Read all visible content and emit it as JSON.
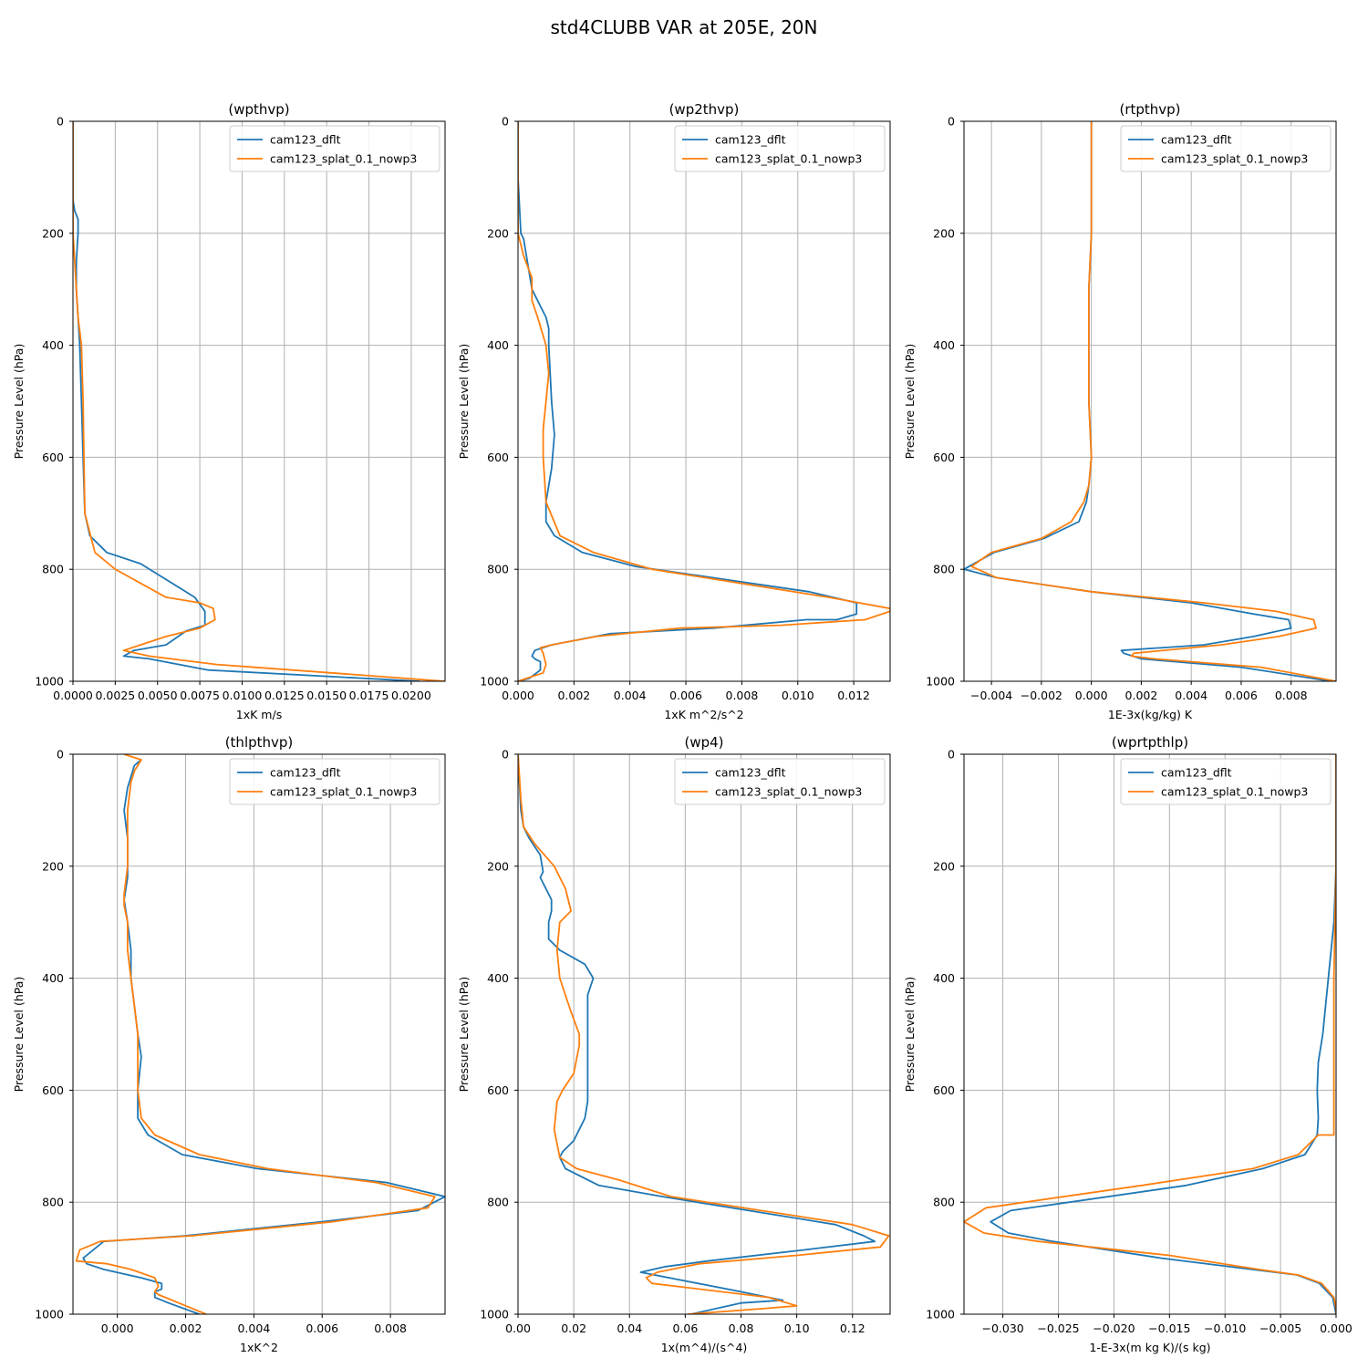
{
  "figure": {
    "suptitle": "std4CLUBB VAR at 205E, 20N"
  },
  "colors": {
    "series1": "#1f77b4",
    "series2": "#ff7f0e",
    "grid": "#b0b0b0"
  },
  "legend_entries": [
    "cam123_dflt",
    "cam123_splat_0.1_nowp3"
  ],
  "chart_data": [
    {
      "type": "line",
      "title": "(wpthvp)",
      "xlabel": "1xK m/s",
      "ylabel": "Pressure Level (hPa)",
      "xlim": [
        0.0,
        0.022
      ],
      "ylim": [
        1000,
        0
      ],
      "xticks": [
        0.0,
        0.0025,
        0.005,
        0.0075,
        0.01,
        0.0125,
        0.015,
        0.0175,
        0.02
      ],
      "xticklabels": [
        "0.0000",
        "0.0025",
        "0.0050",
        "0.0075",
        "0.0100",
        "0.0125",
        "0.0150",
        "0.0175",
        "0.0200"
      ],
      "yticks": [
        0,
        200,
        400,
        600,
        800,
        1000
      ],
      "grid": true,
      "legend": "upper right",
      "series": [
        {
          "name": "cam123_dflt",
          "x": [
            0,
            0,
            0.0001,
            0.0003,
            0.0003,
            0.0002,
            0.0002,
            0.0003,
            0.0004,
            0.0005,
            0.0006,
            0.0007,
            0.001,
            0.002,
            0.004,
            0.0072,
            0.0078,
            0.0078,
            0.0067,
            0.0055,
            0.0036,
            0.003,
            0.0045,
            0.008,
            0.0205
          ],
          "y": [
            0,
            140,
            160,
            175,
            200,
            250,
            300,
            350,
            400,
            500,
            600,
            700,
            740,
            770,
            790,
            850,
            875,
            900,
            910,
            935,
            945,
            955,
            960,
            980,
            1000
          ]
        },
        {
          "name": "cam123_splat_0.1_nowp3",
          "x": [
            0,
            0,
            0,
            0.0001,
            0.0002,
            0.0003,
            0.0005,
            0.0006,
            0.0007,
            0.0013,
            0.0025,
            0.0055,
            0.0075,
            0.0083,
            0.0084,
            0.0075,
            0.0055,
            0.004,
            0.003,
            0.0045,
            0.0085,
            0.022
          ],
          "y": [
            0,
            150,
            200,
            250,
            300,
            350,
            400,
            500,
            700,
            770,
            800,
            850,
            860,
            870,
            890,
            905,
            920,
            935,
            945,
            955,
            970,
            1000
          ]
        }
      ]
    },
    {
      "type": "line",
      "title": "(wp2thvp)",
      "xlabel": "1xK m^2/s^2",
      "ylabel": "Pressure Level (hPa)",
      "xlim": [
        0.0,
        0.0133
      ],
      "ylim": [
        1000,
        0
      ],
      "xticks": [
        0.0,
        0.002,
        0.004,
        0.006,
        0.008,
        0.01,
        0.012
      ],
      "xticklabels": [
        "0.000",
        "0.002",
        "0.004",
        "0.006",
        "0.008",
        "0.010",
        "0.012"
      ],
      "yticks": [
        0,
        200,
        400,
        600,
        800,
        1000
      ],
      "grid": true,
      "legend": "upper right",
      "series": [
        {
          "name": "cam123_dflt",
          "x": [
            0,
            0,
            0.0001,
            0.0002,
            0.0003,
            0.0005,
            0.0008,
            0.001,
            0.0011,
            0.0011,
            0.0012,
            0.0013,
            0.0012,
            0.001,
            0.001,
            0.0013,
            0.0023,
            0.0042,
            0.0104,
            0.0121,
            0.0121,
            0.0114,
            0.0103,
            0.007,
            0.0033,
            0.0012,
            0.0006,
            0.0005,
            0.0006,
            0.0008,
            0.0008,
            0.0004,
            0
          ],
          "y": [
            0,
            100,
            200,
            210,
            240,
            300,
            330,
            350,
            370,
            400,
            500,
            560,
            620,
            680,
            715,
            740,
            770,
            795,
            840,
            860,
            880,
            890,
            890,
            905,
            915,
            935,
            945,
            955,
            960,
            965,
            980,
            995,
            1000
          ]
        },
        {
          "name": "cam123_splat_0.1_nowp3",
          "x": [
            0,
            0,
            0,
            0.0002,
            0.0005,
            0.0005,
            0.0007,
            0.001,
            0.0011,
            0.001,
            0.0009,
            0.0009,
            0.001,
            0.0015,
            0.0027,
            0.0048,
            0.0111,
            0.0133,
            0.0133,
            0.0124,
            0.0094,
            0.0058,
            0.0028,
            0.0012,
            0.0008,
            0.0009,
            0.001,
            0.0009,
            0.0003,
            0
          ],
          "y": [
            0,
            100,
            200,
            240,
            280,
            320,
            350,
            400,
            450,
            500,
            550,
            600,
            680,
            740,
            770,
            800,
            850,
            870,
            875,
            890,
            900,
            905,
            920,
            935,
            940,
            950,
            970,
            985,
            995,
            1000
          ]
        }
      ]
    },
    {
      "type": "line",
      "title": "(rtpthvp)",
      "xlabel": "1E-3x(kg/kg) K",
      "ylabel": "Pressure Level (hPa)",
      "xlim": [
        -0.0051,
        0.0098
      ],
      "ylim": [
        1000,
        0
      ],
      "xticks": [
        -0.004,
        -0.002,
        0.0,
        0.002,
        0.004,
        0.006,
        0.008
      ],
      "xticklabels": [
        "−0.004",
        "−0.002",
        "0.000",
        "0.002",
        "0.004",
        "0.006",
        "0.008"
      ],
      "yticks": [
        0,
        200,
        400,
        600,
        800,
        1000
      ],
      "grid": true,
      "legend": "upper right",
      "series": [
        {
          "name": "cam123_dflt",
          "x": [
            0,
            0,
            0,
            -0.0001,
            -0.0001,
            -0.0001,
            0,
            -0.0001,
            -0.0002,
            -0.0005,
            -0.0019,
            -0.0039,
            -0.0051,
            -0.0038,
            0.0,
            0.004,
            0.0065,
            0.0079,
            0.008,
            0.0065,
            0.0045,
            0.0012,
            0.0013,
            0.002,
            0.006,
            0.0096
          ],
          "y": [
            0,
            100,
            200,
            300,
            400,
            500,
            600,
            650,
            680,
            715,
            745,
            770,
            800,
            815,
            840,
            860,
            880,
            890,
            905,
            920,
            935,
            945,
            950,
            960,
            975,
            1000
          ]
        },
        {
          "name": "cam123_splat_0.1_nowp3",
          "x": [
            0,
            0,
            0,
            -0.0001,
            -0.0001,
            -0.0001,
            0,
            -0.0001,
            -0.0003,
            -0.0008,
            -0.002,
            -0.004,
            -0.0048,
            -0.0038,
            0.0,
            0.0045,
            0.0074,
            0.0089,
            0.009,
            0.0075,
            0.0052,
            0.0017,
            0.0016,
            0.0025,
            0.0068,
            0.0098
          ],
          "y": [
            0,
            100,
            200,
            300,
            400,
            500,
            600,
            650,
            680,
            715,
            745,
            770,
            795,
            815,
            840,
            860,
            875,
            890,
            905,
            920,
            935,
            950,
            955,
            960,
            975,
            1000
          ]
        }
      ]
    },
    {
      "type": "line",
      "title": "(thlpthvp)",
      "xlabel": "1xK^2",
      "ylabel": "Pressure Level (hPa)",
      "xlim": [
        -0.0013,
        0.0096
      ],
      "ylim": [
        1000,
        0
      ],
      "xticks": [
        0.0,
        0.002,
        0.004,
        0.006,
        0.008
      ],
      "xticklabels": [
        "0.000",
        "0.002",
        "0.004",
        "0.006",
        "0.008"
      ],
      "yticks": [
        0,
        200,
        400,
        600,
        800,
        1000
      ],
      "grid": true,
      "legend": "upper right",
      "series": [
        {
          "name": "cam123_dflt",
          "x": [
            0.0007,
            0.0005,
            0.0004,
            0.0003,
            0.0002,
            0.0003,
            0.0003,
            0.0003,
            0.0002,
            0.0003,
            0.0004,
            0.0004,
            0.0005,
            0.0006,
            0.0007,
            0.0006,
            0.0006,
            0.0009,
            0.0019,
            0.0041,
            0.0079,
            0.0096,
            0.0088,
            0.006,
            0.002,
            -0.0004,
            -0.001,
            -0.0009,
            -0.0004,
            0.0007,
            0.0013,
            0.0013,
            0.0011,
            0.0011,
            0.0015,
            0.0024
          ],
          "y": [
            10,
            20,
            40,
            60,
            100,
            150,
            200,
            220,
            260,
            300,
            350,
            400,
            450,
            500,
            540,
            600,
            650,
            680,
            715,
            740,
            765,
            790,
            815,
            835,
            860,
            870,
            900,
            910,
            920,
            935,
            945,
            955,
            960,
            970,
            980,
            1000
          ]
        },
        {
          "name": "cam123_splat_0.1_nowp3",
          "x": [
            0.0002,
            0.0007,
            0.0005,
            0.0004,
            0.0003,
            0.0003,
            0.0003,
            0.0002,
            0.0002,
            0.0003,
            0.0003,
            0.0004,
            0.0005,
            0.0006,
            0.0006,
            0.0007,
            0.0011,
            0.0024,
            0.0044,
            0.0076,
            0.0093,
            0.0091,
            0.0063,
            0.0022,
            -0.0005,
            -0.0011,
            -0.0012,
            -0.0003,
            0.0004,
            0.0011,
            0.0012,
            0.0011,
            0.0012,
            0.0018,
            0.0026
          ],
          "y": [
            0,
            10,
            30,
            50,
            100,
            150,
            200,
            250,
            270,
            300,
            350,
            400,
            450,
            500,
            600,
            650,
            680,
            715,
            740,
            765,
            790,
            810,
            835,
            860,
            870,
            885,
            905,
            910,
            920,
            935,
            950,
            960,
            965,
            980,
            1000
          ]
        }
      ]
    },
    {
      "type": "line",
      "title": "(wp4)",
      "xlabel": "1x(m^4)/(s^4)",
      "ylabel": "Pressure Level (hPa)",
      "xlim": [
        0.0,
        0.1335
      ],
      "ylim": [
        1000,
        0
      ],
      "xticks": [
        0.0,
        0.02,
        0.04,
        0.06,
        0.08,
        0.1,
        0.12
      ],
      "xticklabels": [
        "0.00",
        "0.02",
        "0.04",
        "0.06",
        "0.08",
        "0.10",
        "0.12"
      ],
      "yticks": [
        0,
        200,
        400,
        600,
        800,
        1000
      ],
      "grid": true,
      "legend": "upper right",
      "series": [
        {
          "name": "cam123_dflt",
          "x": [
            0,
            0.001,
            0.002,
            0.004,
            0.008,
            0.009,
            0.008,
            0.01,
            0.012,
            0.012,
            0.011,
            0.011,
            0.015,
            0.024,
            0.027,
            0.025,
            0.025,
            0.025,
            0.025,
            0.024,
            0.02,
            0.016,
            0.015,
            0.017,
            0.029,
            0.052,
            0.114,
            0.124,
            0.128,
            0.103,
            0.068,
            0.053,
            0.044,
            0.049,
            0.08,
            0.095,
            0.08,
            0.062
          ],
          "y": [
            0,
            100,
            130,
            150,
            180,
            210,
            220,
            240,
            260,
            280,
            300,
            330,
            350,
            375,
            400,
            430,
            500,
            580,
            620,
            650,
            690,
            710,
            720,
            740,
            770,
            790,
            840,
            860,
            870,
            885,
            905,
            915,
            925,
            930,
            960,
            975,
            980,
            1000
          ]
        },
        {
          "name": "cam123_splat_0.1_nowp3",
          "x": [
            0,
            0.001,
            0.002,
            0.006,
            0.013,
            0.017,
            0.019,
            0.015,
            0.014,
            0.015,
            0.019,
            0.022,
            0.022,
            0.02,
            0.016,
            0.014,
            0.013,
            0.015,
            0.021,
            0.036,
            0.055,
            0.12,
            0.133,
            0.13,
            0.1,
            0.065,
            0.05,
            0.046,
            0.048,
            0.09,
            0.1,
            0.088,
            0.061
          ],
          "y": [
            0,
            80,
            130,
            160,
            200,
            240,
            280,
            300,
            350,
            400,
            460,
            500,
            520,
            570,
            600,
            620,
            670,
            720,
            740,
            760,
            790,
            840,
            860,
            880,
            895,
            910,
            925,
            935,
            945,
            970,
            985,
            990,
            1000
          ]
        }
      ]
    },
    {
      "type": "line",
      "title": "(wprtpthlp)",
      "xlabel": "1-E-3x(m kg K)/(s kg)",
      "ylabel": "Pressure Level (hPa)",
      "xlim": [
        -0.0335,
        0.0
      ],
      "ylim": [
        1000,
        0
      ],
      "xticks": [
        -0.03,
        -0.025,
        -0.02,
        -0.015,
        -0.01,
        -0.005,
        0.0
      ],
      "xticklabels": [
        "−0.030",
        "−0.025",
        "−0.020",
        "−0.015",
        "−0.010",
        "−0.005",
        "0.000"
      ],
      "yticks": [
        0,
        200,
        400,
        600,
        800,
        1000
      ],
      "grid": true,
      "legend": "upper right",
      "series": [
        {
          "name": "cam123_dflt",
          "x": [
            0,
            0,
            0,
            -0.0002,
            -0.0007,
            -0.0012,
            -0.0016,
            -0.0017,
            -0.0016,
            -0.0017,
            -0.0028,
            -0.0066,
            -0.0135,
            -0.0293,
            -0.0311,
            -0.0295,
            -0.0255,
            -0.0157,
            -0.0076,
            -0.0035,
            -0.0015,
            -0.0003,
            0
          ],
          "y": [
            0,
            100,
            200,
            300,
            400,
            500,
            550,
            600,
            650,
            680,
            715,
            740,
            770,
            815,
            835,
            855,
            870,
            900,
            920,
            930,
            945,
            970,
            1000
          ]
        },
        {
          "name": "cam123_splat_0.1_nowp3",
          "x": [
            0,
            0,
            0,
            -0.0001,
            -0.0002,
            -0.0002,
            -0.0002,
            -0.0002,
            -0.0002,
            -0.0016,
            -0.0034,
            -0.0075,
            -0.0175,
            -0.0315,
            -0.0335,
            -0.0317,
            -0.0268,
            -0.015,
            -0.007,
            -0.0034,
            -0.0013,
            -0.0002,
            0,
            0
          ],
          "y": [
            0,
            100,
            200,
            300,
            400,
            500,
            600,
            650,
            680,
            680,
            715,
            740,
            770,
            810,
            835,
            855,
            870,
            895,
            920,
            930,
            945,
            970,
            990,
            1000
          ]
        }
      ]
    }
  ]
}
